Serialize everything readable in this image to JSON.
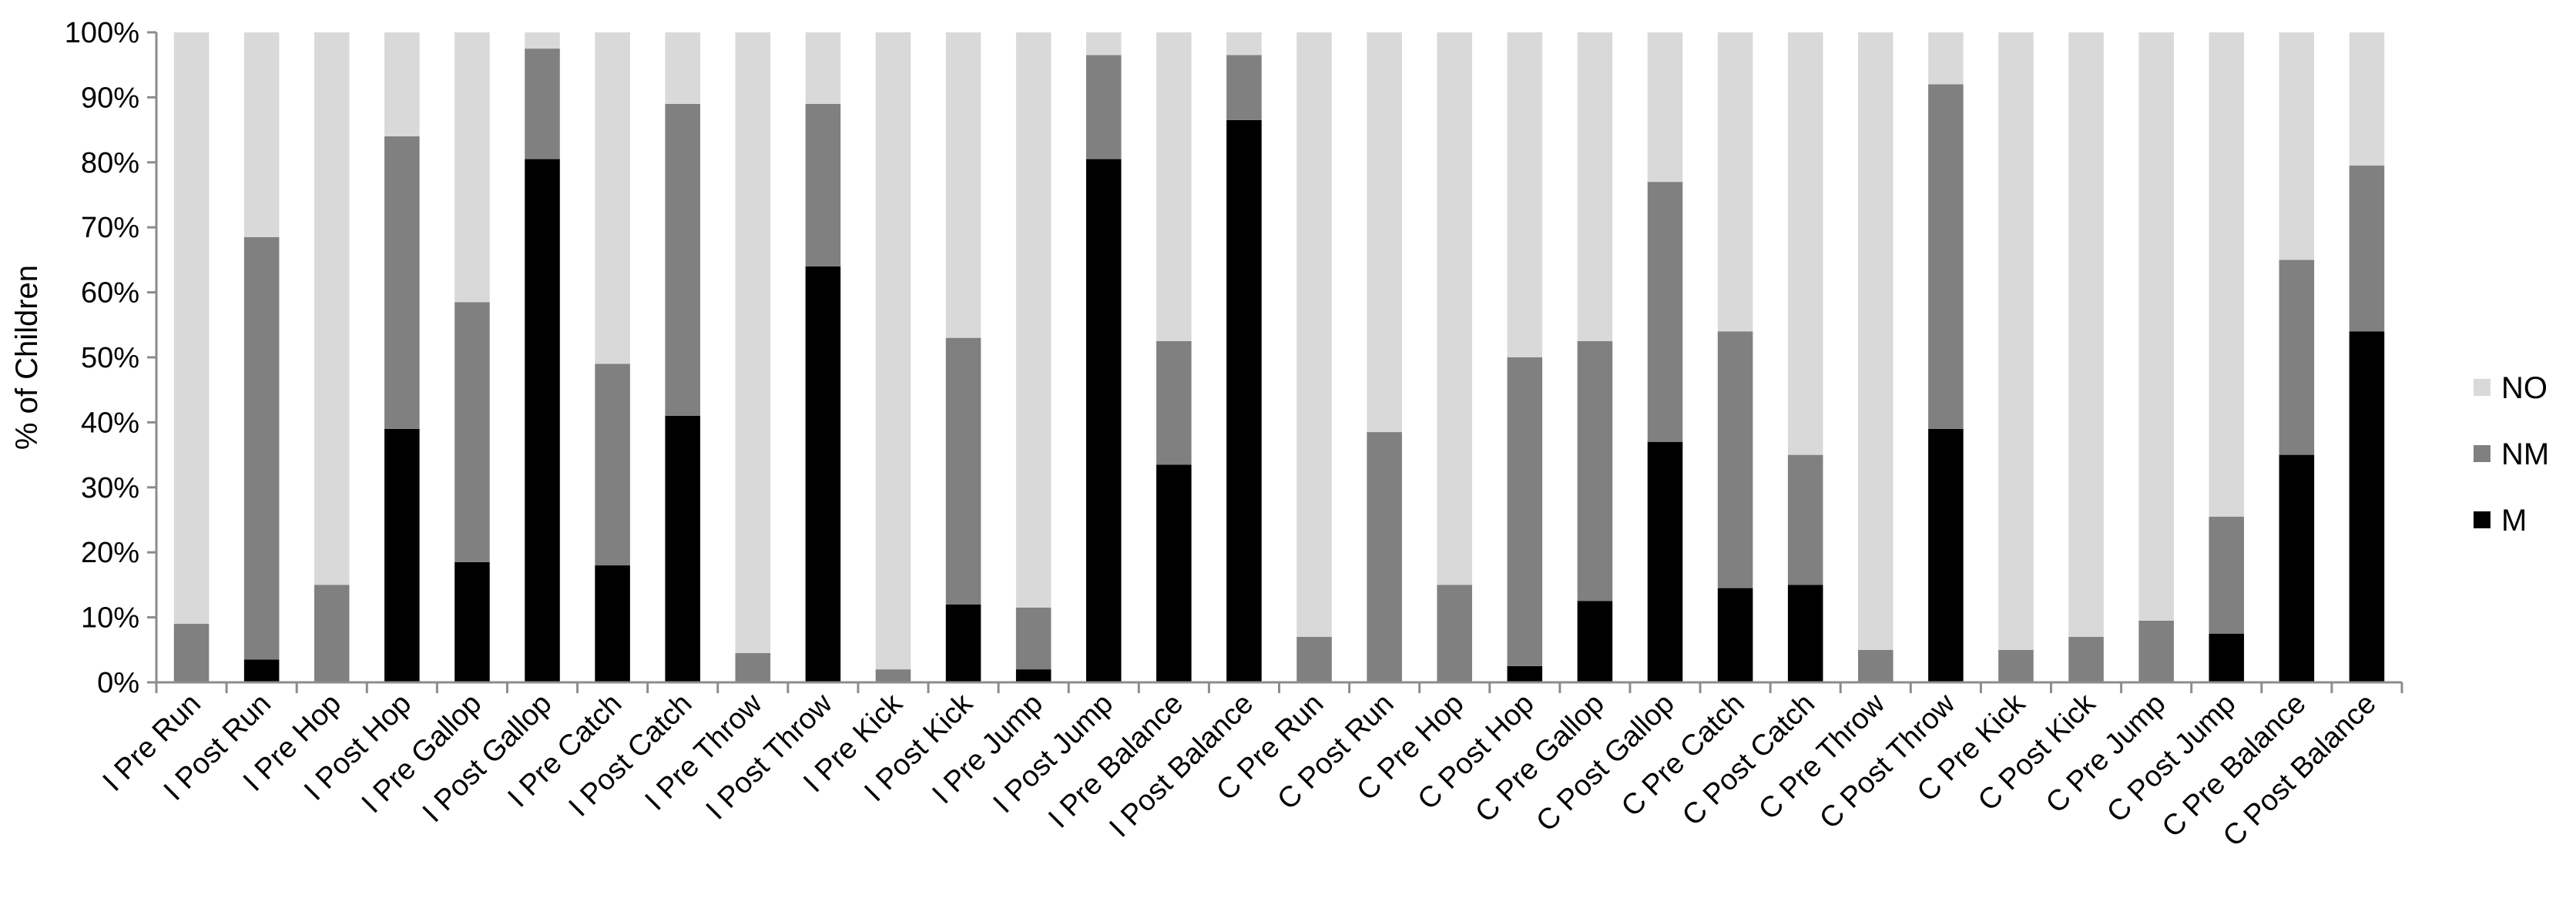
{
  "chart_data": {
    "type": "bar",
    "stacked": true,
    "normalized": true,
    "ylabel": "% of Children",
    "xlabel": "",
    "ylim": [
      0,
      100
    ],
    "yticks": [
      "0%",
      "10%",
      "20%",
      "30%",
      "40%",
      "50%",
      "60%",
      "70%",
      "80%",
      "90%",
      "100%"
    ],
    "grid": false,
    "legend_position": "right",
    "categories": [
      "I Pre Run",
      "I Post Run",
      "I Pre Hop",
      "I Post Hop",
      "I Pre Gallop",
      "I Post Gallop",
      "I Pre Catch",
      "I Post Catch",
      "I Pre Throw",
      "I Post Throw",
      "I Pre Kick",
      "I Post Kick",
      "I Pre Jump",
      "I Post Jump",
      "I Pre Balance",
      "I Post Balance",
      "C Pre Run",
      "C Post Run",
      "C Pre Hop",
      "C Post Hop",
      "C Pre Gallop",
      "C Post Gallop",
      "C Pre Catch",
      "C Post Catch",
      "C Pre Throw",
      "C Post Throw",
      "C Pre Kick",
      "C Post Kick",
      "C Pre Jump",
      "C Post Jump",
      "C Pre Balance",
      "C Post Balance"
    ],
    "series": [
      {
        "name": "M",
        "color": "#000000",
        "values": [
          0,
          3.5,
          0,
          39,
          18.5,
          80.5,
          18,
          41,
          0,
          64,
          0,
          12,
          2,
          80.5,
          33.5,
          86.5,
          0,
          0,
          0,
          2.5,
          12.5,
          37,
          14.5,
          15,
          0,
          39,
          0,
          0,
          0,
          7.5,
          35,
          54
        ]
      },
      {
        "name": "NM",
        "color": "#808080",
        "values": [
          9,
          65,
          15,
          45,
          40,
          17,
          31,
          48,
          4.5,
          25,
          2,
          41,
          9.5,
          16,
          19,
          10,
          7,
          38.5,
          15,
          47.5,
          40,
          40,
          39.5,
          20,
          5,
          53,
          5,
          7,
          9.5,
          18,
          30,
          25.5
        ]
      },
      {
        "name": "NO",
        "color": "#d9d9d9",
        "values": [
          91,
          31.5,
          85,
          16,
          41.5,
          2.5,
          51,
          11,
          95.5,
          11,
          98,
          47,
          88.5,
          3.5,
          47.5,
          3.5,
          93,
          61.5,
          85,
          50,
          47.5,
          23,
          46,
          65,
          95,
          8,
          95,
          93,
          90.5,
          74.5,
          35,
          20.5
        ]
      }
    ]
  }
}
